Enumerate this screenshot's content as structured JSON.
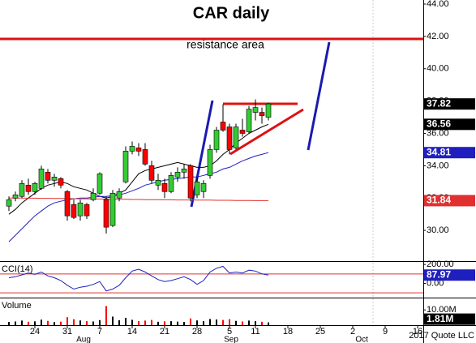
{
  "chart_data": [
    {
      "type": "candlestick",
      "title": "CAR daily",
      "annotation": "resistance area",
      "source": "2017 Quote LLC",
      "open": [
        31.5,
        32.0,
        32.1,
        32.8,
        32.4,
        32.6,
        33.6,
        33.1,
        33.2,
        32.4,
        31.6,
        30.9,
        31.6,
        31.9,
        32.3,
        31.9,
        30.3,
        32.0,
        33.0,
        34.9,
        35.1,
        35.0,
        34.0,
        32.8,
        32.9,
        32.4,
        33.3,
        33.6,
        34.0,
        32.2,
        32.4,
        33.4,
        35.0,
        36.7,
        36.4,
        35.1,
        36.2,
        36.1,
        37.3,
        37.3,
        37.0
      ],
      "high": [
        32.1,
        32.4,
        33.1,
        33.2,
        33.0,
        34.0,
        33.8,
        33.5,
        33.3,
        32.5,
        31.9,
        31.9,
        31.7,
        32.6,
        33.6,
        32.1,
        32.5,
        32.6,
        35.2,
        35.5,
        35.4,
        35.4,
        34.3,
        33.5,
        33.2,
        33.6,
        33.9,
        34.1,
        34.1,
        33.3,
        33.1,
        35.3,
        36.4,
        37.8,
        36.6,
        36.6,
        36.9,
        37.7,
        38.1,
        37.6,
        37.9
      ],
      "low": [
        31.2,
        31.8,
        32.0,
        32.2,
        32.2,
        32.5,
        32.9,
        32.7,
        32.6,
        30.6,
        30.7,
        30.6,
        30.7,
        31.8,
        32.2,
        29.8,
        30.2,
        31.8,
        32.9,
        34.7,
        34.6,
        34.0,
        32.9,
        32.5,
        32.0,
        32.3,
        33.0,
        33.2,
        31.8,
        32.0,
        32.0,
        33.2,
        34.8,
        36.1,
        34.7,
        35.0,
        35.8,
        36.0,
        36.8,
        36.6,
        36.8
      ],
      "close": [
        31.9,
        32.2,
        32.9,
        32.4,
        32.9,
        33.8,
        33.1,
        33.3,
        32.8,
        30.9,
        30.8,
        31.7,
        30.9,
        32.3,
        33.5,
        30.2,
        32.3,
        32.4,
        34.9,
        35.2,
        34.9,
        34.1,
        33.1,
        33.1,
        32.4,
        33.4,
        33.6,
        33.8,
        32.0,
        33.0,
        32.9,
        35.0,
        36.2,
        36.2,
        35.0,
        36.4,
        36.0,
        37.5,
        37.6,
        37.1,
        37.82
      ],
      "up_color": "#33cc33",
      "down_color": "#ff0000",
      "series": [
        {
          "color": "#000000",
          "values": [
            31.0,
            31.3,
            31.7,
            32.0,
            32.3,
            32.6,
            32.8,
            32.9,
            33.0,
            32.9,
            32.7,
            32.6,
            32.5,
            32.3,
            32.1,
            32.0,
            32.1,
            32.3,
            32.5,
            33.0,
            33.5,
            33.7,
            33.8,
            33.9,
            34.0,
            34.1,
            34.2,
            34.1,
            34.0,
            33.9,
            33.9,
            34.0,
            34.3,
            34.7,
            35.0,
            35.4,
            35.7,
            36.0,
            36.2,
            36.4,
            36.56
          ]
        },
        {
          "color": "#1f1fbf",
          "values": [
            29.3,
            29.7,
            30.1,
            30.5,
            30.9,
            31.2,
            31.5,
            31.7,
            31.8,
            31.9,
            31.95,
            32.0,
            32.0,
            32.05,
            32.1,
            32.1,
            32.15,
            32.2,
            32.3,
            32.45,
            32.6,
            32.8,
            32.9,
            33.0,
            33.1,
            33.15,
            33.2,
            33.25,
            33.3,
            33.3,
            33.4,
            33.5,
            33.6,
            33.8,
            33.9,
            34.1,
            34.3,
            34.45,
            34.6,
            34.7,
            34.81
          ]
        },
        {
          "color": "#e03030",
          "values": [
            32.0,
            32.0,
            32.0,
            31.99,
            31.99,
            31.98,
            31.98,
            31.97,
            31.97,
            31.96,
            31.96,
            31.95,
            31.95,
            31.94,
            31.94,
            31.93,
            31.93,
            31.92,
            31.92,
            31.91,
            31.91,
            31.9,
            31.9,
            31.9,
            31.89,
            31.89,
            31.88,
            31.88,
            31.88,
            31.87,
            31.87,
            31.87,
            31.86,
            31.86,
            31.86,
            31.85,
            31.85,
            31.85,
            31.84,
            31.84,
            31.84
          ]
        }
      ],
      "ylim": [
        28.1,
        44.25
      ],
      "yticks": [
        {
          "value": 44,
          "label": "44.00"
        },
        {
          "value": 42,
          "label": "42.00"
        },
        {
          "value": 40,
          "label": "40.00"
        },
        {
          "value": 38,
          "label": "38.00"
        },
        {
          "value": 36,
          "label": "36.00"
        },
        {
          "value": 34,
          "label": "34.00"
        },
        {
          "value": 32,
          "label": "32.00"
        },
        {
          "value": 30,
          "label": "30.00"
        }
      ],
      "xlim": [
        -1.375,
        63.875
      ],
      "xticks": [
        {
          "value": 4,
          "label": "24"
        },
        {
          "value": 9,
          "label": "31"
        },
        {
          "value": 14,
          "label": "7"
        },
        {
          "value": 19,
          "label": "14"
        },
        {
          "value": 24,
          "label": "21"
        },
        {
          "value": 29,
          "label": "28"
        },
        {
          "value": 34,
          "label": "5"
        },
        {
          "value": 38,
          "label": "11"
        },
        {
          "value": 43,
          "label": "18"
        },
        {
          "value": 48,
          "label": "25"
        },
        {
          "value": 53,
          "label": "2"
        },
        {
          "value": 58,
          "label": "9"
        },
        {
          "value": 63,
          "label": "16"
        }
      ],
      "xmonths": [
        {
          "value": 11.5,
          "label": "Aug"
        },
        {
          "value": 34.25,
          "label": "Sep"
        },
        {
          "value": 54.4,
          "label": "Oct"
        }
      ]
    },
    {
      "type": "line",
      "title": "CCI(14)",
      "color": "#1f1fbf",
      "values": [
        60,
        70,
        90,
        110,
        95,
        120,
        80,
        60,
        30,
        -20,
        -60,
        -40,
        -30,
        -10,
        20,
        -80,
        -60,
        -20,
        60,
        130,
        150,
        120,
        80,
        40,
        20,
        30,
        50,
        70,
        40,
        -10,
        30,
        120,
        160,
        180,
        110,
        120,
        110,
        140,
        130,
        100,
        87.97
      ],
      "ylim": [
        -150,
        210
      ],
      "yticks": [
        {
          "value": 200,
          "label": "200.00"
        },
        {
          "value": 0,
          "label": "0.00"
        }
      ],
      "hlines": [
        100,
        -100
      ],
      "hline_color": "#e03030"
    },
    {
      "type": "bar",
      "title": "Volume",
      "values": [
        2.1,
        2.4,
        3.0,
        2.2,
        2.5,
        3.6,
        2.8,
        2.0,
        2.3,
        5.2,
        3.9,
        3.1,
        2.6,
        2.4,
        3.3,
        12.5,
        5.6,
        3.2,
        4.8,
        3.5,
        2.7,
        3.0,
        3.4,
        2.2,
        2.5,
        2.6,
        2.3,
        2.1,
        4.4,
        3.1,
        2.6,
        4.0,
        3.7,
        3.4,
        3.9,
        2.8,
        2.4,
        3.0,
        2.6,
        2.2,
        1.81
      ],
      "value_labels": [
        null,
        null,
        null,
        null,
        null,
        null,
        null,
        null,
        null,
        null,
        null,
        null,
        null,
        null,
        null,
        null,
        null,
        null,
        null,
        null,
        null,
        null,
        null,
        null,
        null,
        null,
        null,
        null,
        null,
        null,
        null,
        null,
        null,
        null,
        null,
        null,
        null,
        null,
        null,
        null,
        "1.81M"
      ],
      "ylim": [
        0,
        17
      ],
      "yticks": [
        {
          "value": 10,
          "label": "10.00M"
        }
      ]
    }
  ]
}
